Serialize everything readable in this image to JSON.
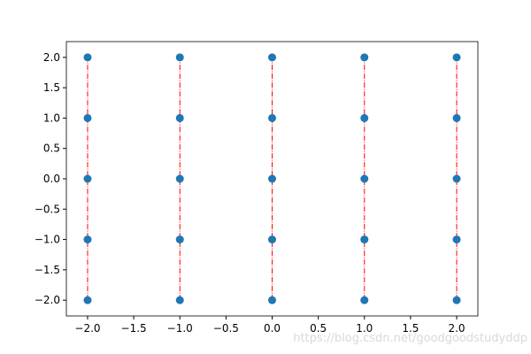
{
  "chart_data": {
    "type": "scatter",
    "xlim": [
      -2.23,
      2.23
    ],
    "ylim": [
      -2.26,
      2.26
    ],
    "xticks": [
      {
        "value": -2,
        "label": "−2.0"
      },
      {
        "value": -1.5,
        "label": "−1.5"
      },
      {
        "value": -1,
        "label": "−1.0"
      },
      {
        "value": -0.5,
        "label": "−0.5"
      },
      {
        "value": 0,
        "label": "0.0"
      },
      {
        "value": 0.5,
        "label": "0.5"
      },
      {
        "value": 1,
        "label": "1.0"
      },
      {
        "value": 1.5,
        "label": "1.5"
      },
      {
        "value": 2,
        "label": "2.0"
      }
    ],
    "yticks": [
      {
        "value": -2,
        "label": "−2.0"
      },
      {
        "value": -1.5,
        "label": "−1.5"
      },
      {
        "value": -1,
        "label": "−1.0"
      },
      {
        "value": -0.5,
        "label": "−0.5"
      },
      {
        "value": 0,
        "label": "0.0"
      },
      {
        "value": 0.5,
        "label": "0.5"
      },
      {
        "value": 1,
        "label": "1.0"
      },
      {
        "value": 1.5,
        "label": "1.5"
      },
      {
        "value": 2,
        "label": "2.0"
      }
    ],
    "lines": [
      {
        "color": "#ff0000",
        "x": [
          -2,
          -2,
          -2,
          -2,
          -2
        ],
        "y": [
          -2,
          -1,
          0,
          1,
          2
        ]
      },
      {
        "color": "#ff0000",
        "x": [
          -1,
          -1,
          -1,
          -1,
          -1
        ],
        "y": [
          -2,
          -1,
          0,
          1,
          2
        ]
      },
      {
        "color": "#ff0000",
        "x": [
          0,
          0,
          0,
          0,
          0
        ],
        "y": [
          -2,
          -1,
          0,
          1,
          2
        ]
      },
      {
        "color": "#ff0000",
        "x": [
          1,
          1,
          1,
          1,
          1
        ],
        "y": [
          -2,
          -1,
          0,
          1,
          2
        ]
      },
      {
        "color": "#ff0000",
        "x": [
          2,
          2,
          2,
          2,
          2
        ],
        "y": [
          -2,
          -1,
          0,
          1,
          2
        ]
      }
    ],
    "points": {
      "color": "#1f77b4",
      "x": [
        -2,
        -1,
        0,
        1,
        2,
        -2,
        -1,
        0,
        1,
        2,
        -2,
        -1,
        0,
        1,
        2,
        -2,
        -1,
        0,
        1,
        2,
        -2,
        -1,
        0,
        1,
        2
      ],
      "y": [
        -2,
        -2,
        -2,
        -2,
        -2,
        -1,
        -1,
        -1,
        -1,
        -1,
        0,
        0,
        0,
        0,
        0,
        1,
        1,
        1,
        1,
        1,
        2,
        2,
        2,
        2,
        2
      ]
    },
    "watermark": "https://blog.csdn.net/goodgoodstudyddp"
  }
}
